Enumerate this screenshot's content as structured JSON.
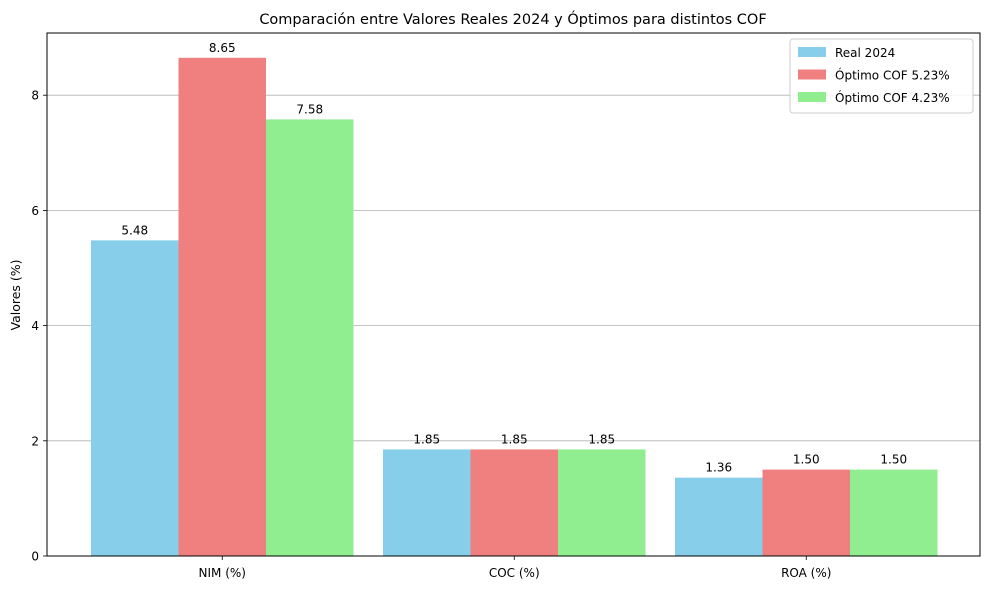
{
  "chart_data": {
    "type": "bar",
    "title": "Comparación entre Valores Reales 2024 y Óptimos para distintos COF",
    "xlabel": "",
    "ylabel": "Valores (%)",
    "categories": [
      "NIM (%)",
      "COC (%)",
      "ROA (%)"
    ],
    "series": [
      {
        "name": "Real 2024",
        "color": "#87ceeb",
        "values": [
          5.48,
          1.85,
          1.36
        ],
        "labels": [
          "5.48",
          "1.85",
          "1.36"
        ]
      },
      {
        "name": "Óptimo COF 5.23%",
        "color": "#f08080",
        "values": [
          8.65,
          1.85,
          1.5
        ],
        "labels": [
          "8.65",
          "1.85",
          "1.50"
        ]
      },
      {
        "name": "Óptimo COF 4.23%",
        "color": "#90ee90",
        "values": [
          7.58,
          1.85,
          1.5
        ],
        "labels": [
          "7.58",
          "1.85",
          "1.50"
        ]
      }
    ],
    "ylim": [
      0,
      9.08
    ],
    "yticks": [
      0,
      2,
      4,
      6,
      8
    ],
    "grid": "horizontal",
    "legend_position": "top-right"
  }
}
